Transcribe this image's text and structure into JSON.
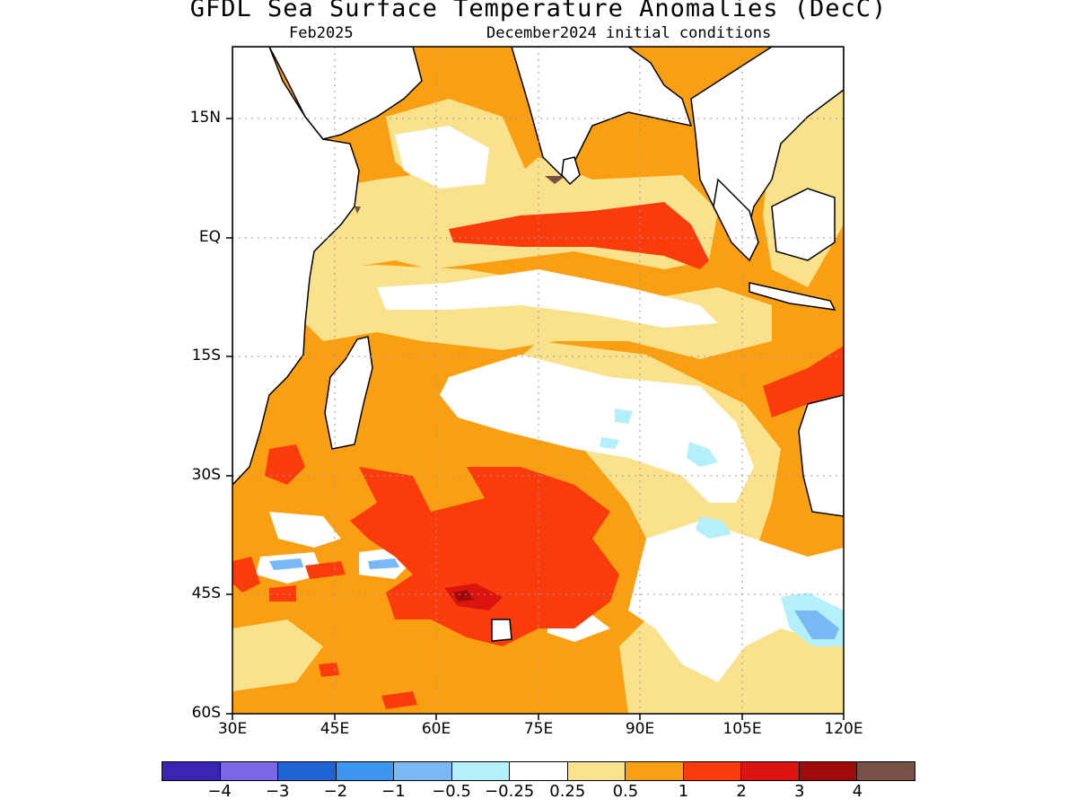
{
  "title": "GFDL Sea Surface Temperature Anomalies (DecC)",
  "subtitle_left": "Feb2025",
  "subtitle_right": "December2024 initial conditions",
  "lat_ticks": [
    "15N",
    "EQ",
    "15S",
    "30S",
    "45S",
    "60S"
  ],
  "lon_ticks": [
    "30E",
    "45E",
    "60E",
    "75E",
    "90E",
    "105E",
    "120E"
  ],
  "colorbar": {
    "colors": [
      "#3a24b4",
      "#7b68e6",
      "#1e64d4",
      "#3c96f0",
      "#78b9f5",
      "#b4f0fa",
      "#ffffff",
      "#fae18c",
      "#fa9f12",
      "#fa3c0c",
      "#dc1410",
      "#a00a0a",
      "#785046"
    ],
    "labels": [
      "−4",
      "−3",
      "−2",
      "−1",
      "−0.5",
      "−0.25",
      "0.25",
      "0.5",
      "1",
      "2",
      "3",
      "4"
    ]
  },
  "colors": {
    "white": "#ffffff",
    "light_yellow": "#fae18c",
    "orange": "#fa9f12",
    "red": "#fa3c0c",
    "dark_red": "#dc1410",
    "maroon": "#a00a0a",
    "cyan": "#b4f0fa",
    "light_blue": "#78b9f5",
    "blue": "#3c96f0",
    "brown": "#785046"
  }
}
